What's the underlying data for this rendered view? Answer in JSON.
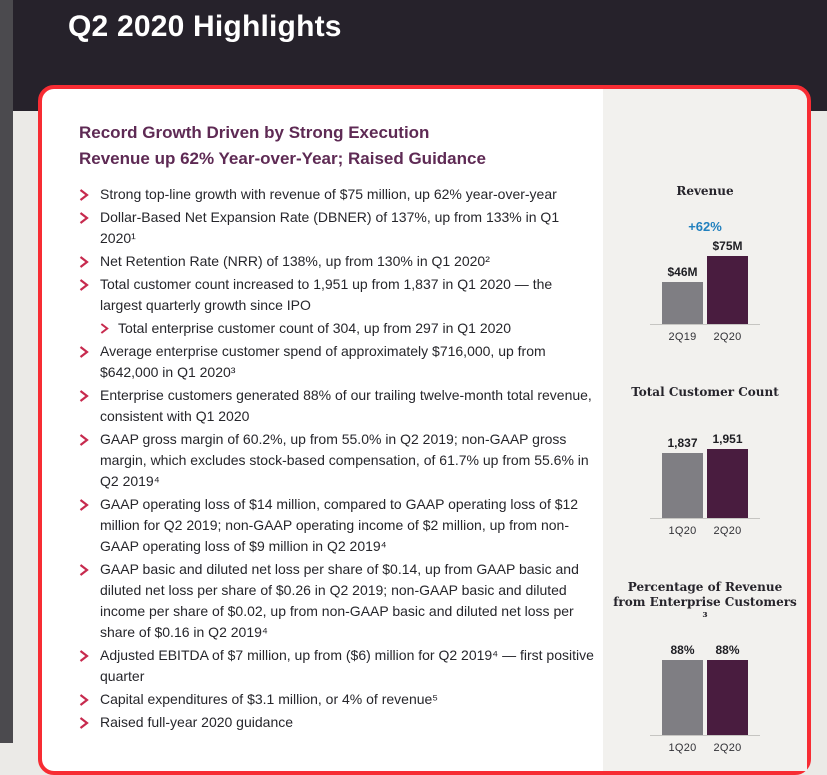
{
  "header": {
    "title": "Q2 2020 Highlights"
  },
  "card": {
    "heading_line1": "Record Growth Driven by Strong Execution",
    "heading_line2": "Revenue up 62% Year-over-Year; Raised Guidance",
    "bullets": [
      {
        "level": 1,
        "text": "Strong top-line growth with revenue of $75 million, up 62% year-over-year"
      },
      {
        "level": 1,
        "text": "Dollar-Based Net Expansion Rate (DBNER) of 137%, up from 133% in Q1 2020¹"
      },
      {
        "level": 1,
        "text": "Net Retention Rate (NRR) of 138%, up from 130% in Q1 2020²"
      },
      {
        "level": 1,
        "text": "Total customer count increased to 1,951 up from 1,837 in Q1 2020 — the largest quarterly growth since IPO"
      },
      {
        "level": 2,
        "text": "Total enterprise customer count of 304, up from 297 in Q1 2020"
      },
      {
        "level": 1,
        "text": "Average enterprise customer spend of approximately $716,000, up from $642,000 in Q1 2020³"
      },
      {
        "level": 1,
        "text": "Enterprise customers generated 88% of our trailing twelve-month total revenue, consistent with Q1 2020"
      },
      {
        "level": 1,
        "text": "GAAP gross margin of 60.2%, up from 55.0% in Q2 2019; non-GAAP gross margin, which excludes stock-based compensation, of 61.7% up from 55.6% in Q2 2019⁴"
      },
      {
        "level": 1,
        "text": "GAAP operating loss of $14 million, compared to GAAP operating loss of $12 million for Q2 2019; non-GAAP operating income of $2 million, up from non-GAAP operating loss of $9 million in Q2 2019⁴"
      },
      {
        "level": 1,
        "text": "GAAP basic and diluted net loss per share of $0.14, up from GAAP basic and diluted net loss per share of $0.26 in Q2 2019; non-GAAP basic and diluted income per share of $0.02, up from non-GAAP basic and diluted net loss per share of $0.16 in Q2 2019⁴"
      },
      {
        "level": 1,
        "text": "Adjusted EBITDA of $7 million, up from ($6) million for Q2 2019⁴ — first positive quarter"
      },
      {
        "level": 1,
        "text": "Capital expenditures of $3.1 million, or 4% of revenue⁵"
      },
      {
        "level": 1,
        "text": "Raised full-year 2020 guidance"
      }
    ]
  },
  "chart_data": [
    {
      "type": "bar",
      "title": "Revenue",
      "annotation": "+62%",
      "categories": [
        "2Q19",
        "2Q20"
      ],
      "values": [
        46,
        75
      ],
      "value_labels": [
        "$46M",
        "$75M"
      ],
      "colors": [
        "#7F7E83",
        "#491C3F"
      ],
      "ylim": [
        0,
        75
      ],
      "grid": false,
      "legend": "none"
    },
    {
      "type": "bar",
      "title": "Total Customer Count",
      "categories": [
        "1Q20",
        "2Q20"
      ],
      "values": [
        1837,
        1951
      ],
      "value_labels": [
        "1,837",
        "1,951"
      ],
      "colors": [
        "#7F7E83",
        "#491C3F"
      ],
      "ylim": [
        0,
        1951
      ],
      "grid": false,
      "legend": "none"
    },
    {
      "type": "bar",
      "title": "Percentage of Revenue from Enterprise Customers ³",
      "categories": [
        "1Q20",
        "2Q20"
      ],
      "values": [
        88,
        88
      ],
      "value_labels": [
        "88%",
        "88%"
      ],
      "colors": [
        "#7F7E83",
        "#491C3F"
      ],
      "ylim": [
        0,
        88
      ],
      "grid": false,
      "legend": "none"
    }
  ],
  "palette": {
    "header_bg": "#26222B",
    "side_strip": "#4B4A4E",
    "page_bg": "#EBEAE7",
    "card_border_red": "#F72C33",
    "panel_bg": "#F2F1EE",
    "heading_plum": "#5E2A54",
    "bullet_chevron_red": "#C72A4E",
    "growth_blue": "#2180BE",
    "bar_gray": "#7F7E83",
    "bar_plum": "#491C3F"
  }
}
